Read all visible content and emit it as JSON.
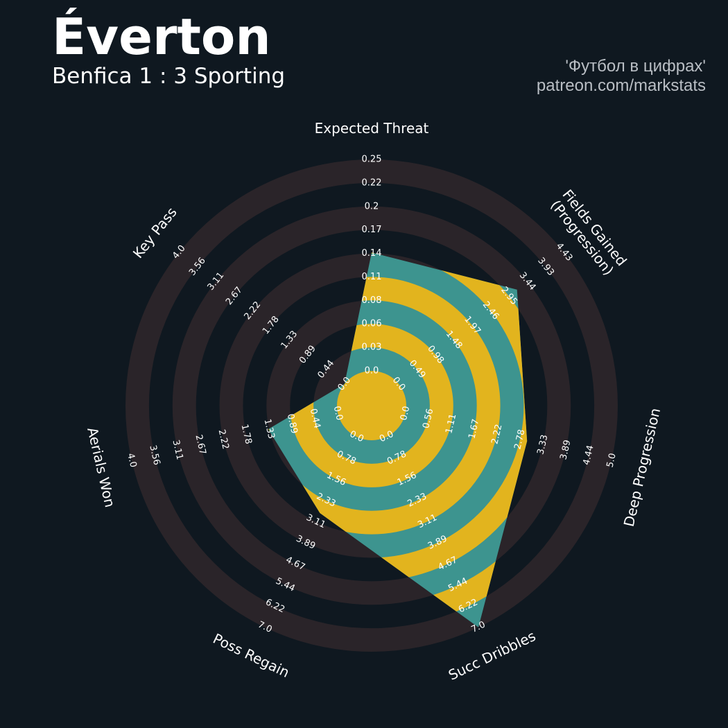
{
  "header": {
    "title": "Éverton",
    "subtitle": "Benfica 1 : 3 Sporting",
    "credit_line1": "'Футбол в цифрах'",
    "credit_line2": "patreon.com/markstats"
  },
  "colors": {
    "background": "#0f1820",
    "ring": "#2a2429",
    "fill_teal": "#3d948f",
    "fill_yellow": "#e2b41e",
    "text": "#ffffff",
    "credit": "#b9bec4"
  },
  "chart_data": {
    "type": "radar",
    "title": "Éverton",
    "subtitle": "Benfica 1 : 3 Sporting",
    "axes": [
      {
        "label": "Expected Threat",
        "label_lines": [
          "Expected Threat"
        ],
        "min": 0,
        "max": 0.25,
        "value": 0.14,
        "ticks": [
          "0.0",
          "0.03",
          "0.06",
          "0.08",
          "0.11",
          "0.14",
          "0.17",
          "0.2",
          "0.22",
          "0.25"
        ]
      },
      {
        "label": "Fields Gained (Progression)",
        "label_lines": [
          "Fields Gained",
          "(Progression)"
        ],
        "min": 0,
        "max": 4.43,
        "value": 3.17,
        "ticks": [
          "0.0",
          "0.49",
          "0.98",
          "1.48",
          "1.97",
          "2.46",
          "2.95",
          "3.44",
          "3.93",
          "4.43"
        ]
      },
      {
        "label": "Deep Progression",
        "label_lines": [
          "Deep Progression"
        ],
        "min": 0,
        "max": 5.0,
        "value": 2.95,
        "ticks": [
          "0.0",
          "0.56",
          "1.11",
          "1.67",
          "2.22",
          "2.78",
          "3.33",
          "3.89",
          "4.44",
          "5.0"
        ]
      },
      {
        "label": "Succ Dribbles",
        "label_lines": [
          "Succ Dribbles"
        ],
        "min": 0,
        "max": 7.0,
        "value": 7.0,
        "ticks": [
          "0.0",
          "0.78",
          "1.56",
          "2.33",
          "3.11",
          "3.89",
          "4.67",
          "5.44",
          "6.22",
          "7.0"
        ]
      },
      {
        "label": "Poss Regain",
        "label_lines": [
          "Poss Regain"
        ],
        "min": 0,
        "max": 7.0,
        "value": 2.8,
        "ticks": [
          "0.0",
          "0.78",
          "1.56",
          "2.33",
          "3.11",
          "3.89",
          "4.67",
          "5.44",
          "6.22",
          "7.0"
        ]
      },
      {
        "label": "Aerials Won",
        "label_lines": [
          "Aerials Won"
        ],
        "min": 0,
        "max": 4.0,
        "value": 1.35,
        "ticks": [
          "0.0",
          "0.44",
          "0.89",
          "1.33",
          "1.78",
          "2.22",
          "2.67",
          "3.11",
          "3.56",
          "4.0"
        ]
      },
      {
        "label": "Key Pass",
        "label_lines": [
          "Key Pass"
        ],
        "min": 0,
        "max": 4.0,
        "value": 0.0,
        "ticks": [
          "0.0",
          "0.44",
          "0.89",
          "1.33",
          "1.78",
          "2.22",
          "2.67",
          "3.11",
          "3.56",
          "4.0"
        ]
      }
    ]
  }
}
